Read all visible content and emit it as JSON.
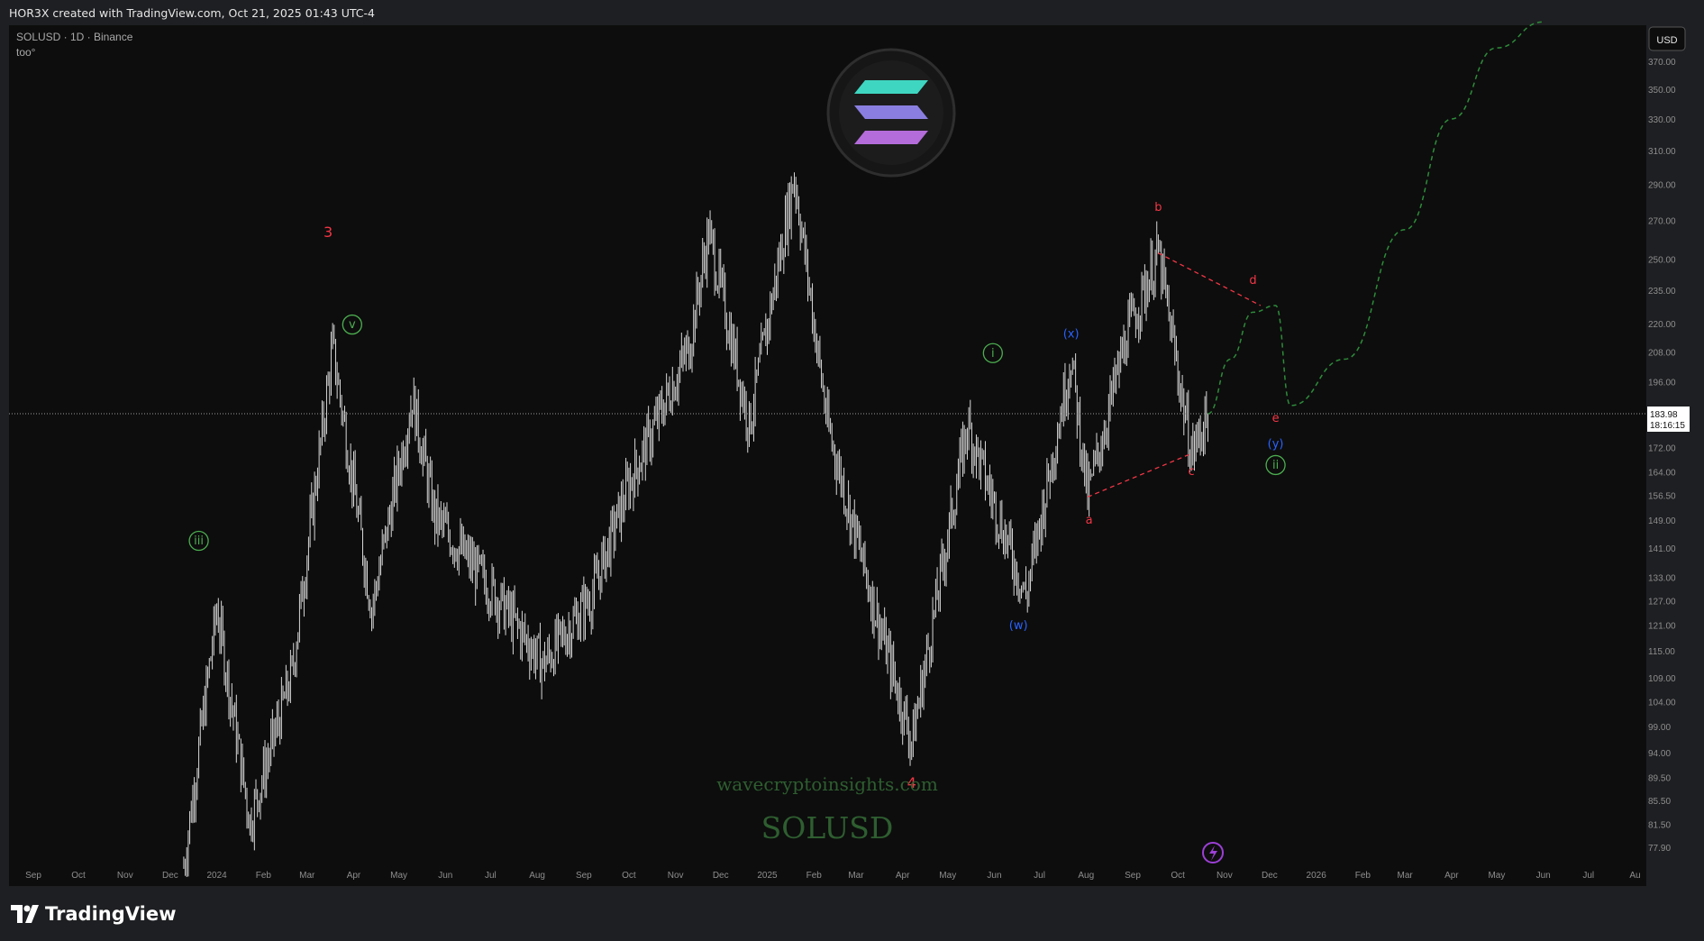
{
  "header": {
    "title": "HOR3X created with TradingView.com, Oct 21, 2025 01:43 UTC-4"
  },
  "legend": {
    "symbol": "SOLUSD · 1D · Binance",
    "sub": "too°"
  },
  "currency_button": "USD",
  "price_label": {
    "price": "183.98",
    "countdown": "18:16:15"
  },
  "watermark": {
    "site": "wavecryptoinsights.com",
    "symbol": "SOLUSD"
  },
  "footer": {
    "brand": "TradingView"
  },
  "colors": {
    "background": "#0d0d0d",
    "candles": "#d8d8d8",
    "wave_red": "#f23645",
    "wave_green": "#4caf50",
    "wave_blue": "#2962ff",
    "projection": "#2e8b3a"
  },
  "chart_data": {
    "type": "line",
    "title": "SOLUSD · 1D · Binance",
    "y_scale": "log",
    "ylim": [
      75,
      390
    ],
    "y_ticks": [
      "370.00",
      "350.00",
      "330.00",
      "310.00",
      "290.00",
      "270.00",
      "250.00",
      "235.00",
      "220.00",
      "208.00",
      "196.00",
      "172.00",
      "164.00",
      "156.50",
      "149.00",
      "141.00",
      "133.00",
      "127.00",
      "121.00",
      "115.00",
      "109.00",
      "104.00",
      "99.00",
      "94.00",
      "89.50",
      "85.50",
      "81.50",
      "77.90"
    ],
    "x_ticks": [
      "Sep",
      "Oct",
      "Nov",
      "Dec",
      "2024",
      "Feb",
      "Mar",
      "Apr",
      "May",
      "Jun",
      "Jul",
      "Aug",
      "Sep",
      "Oct",
      "Nov",
      "Dec",
      "2025",
      "Feb",
      "Mar",
      "Apr",
      "May",
      "Jun",
      "Jul",
      "Aug",
      "Sep",
      "Oct",
      "Nov",
      "Dec",
      "2026",
      "Feb",
      "Mar",
      "Apr",
      "May",
      "Jun",
      "Jul",
      "Au"
    ],
    "current_price": 183.98,
    "series": [
      {
        "x": [
          "2023-12-10",
          "2024-01-01",
          "2024-01-23",
          "2024-02-20",
          "2024-03-18",
          "2024-04-13",
          "2024-05-10",
          "2024-05-25",
          "2024-07-05",
          "2024-08-05",
          "2024-09-06",
          "2024-10-01",
          "2024-11-10",
          "2024-11-23",
          "2024-12-20",
          "2025-01-19",
          "2025-02-10",
          "2025-03-10",
          "2025-04-07",
          "2025-05-14",
          "2025-06-22",
          "2025-07-22",
          "2025-08-02",
          "2025-08-28",
          "2025-09-18",
          "2025-10-10",
          "2025-10-21"
        ],
        "values": [
          75,
          125,
          82,
          110,
          210,
          125,
          190,
          150,
          128,
          112,
          128,
          160,
          210,
          264,
          180,
          295,
          180,
          130,
          96,
          180,
          128,
          206,
          156,
          215,
          253,
          170,
          184
        ]
      },
      {
        "x": [
          "2025-10-21",
          "2025-11-05",
          "2025-11-20",
          "2025-12-05",
          "2025-12-15",
          "2026-01-20",
          "2026-03-01",
          "2026-04-01",
          "2026-05-01",
          "2026-06-01"
        ],
        "values": [
          184,
          205,
          225,
          228,
          187,
          205,
          265,
          330,
          380,
          400
        ]
      }
    ],
    "annotations": [
      {
        "label": "3",
        "x": "2024-03-15",
        "y": 262
      },
      {
        "label": "v",
        "x": "2024-03-31",
        "y": 218
      },
      {
        "label": "iii",
        "x": "2023-12-20",
        "y": 142
      },
      {
        "label": "4",
        "x": "2025-04-07",
        "y": 88
      },
      {
        "label": "i",
        "x": "2025-05-31",
        "y": 206
      },
      {
        "label": "(x)",
        "x": "2025-07-22",
        "y": 214
      },
      {
        "label": "(w)",
        "x": "2025-06-17",
        "y": 120
      },
      {
        "label": "a",
        "x": "2025-08-03",
        "y": 148
      },
      {
        "label": "b",
        "x": "2025-09-18",
        "y": 275
      },
      {
        "label": "c",
        "x": "2025-10-10",
        "y": 163
      },
      {
        "label": "d",
        "x": "2025-11-20",
        "y": 238
      },
      {
        "label": "e",
        "x": "2025-12-05",
        "y": 181
      },
      {
        "label": "(y)",
        "x": "2025-12-05",
        "y": 172
      },
      {
        "label": "ii",
        "x": "2025-12-05",
        "y": 165
      }
    ],
    "grid": false,
    "legend": "top-left"
  }
}
